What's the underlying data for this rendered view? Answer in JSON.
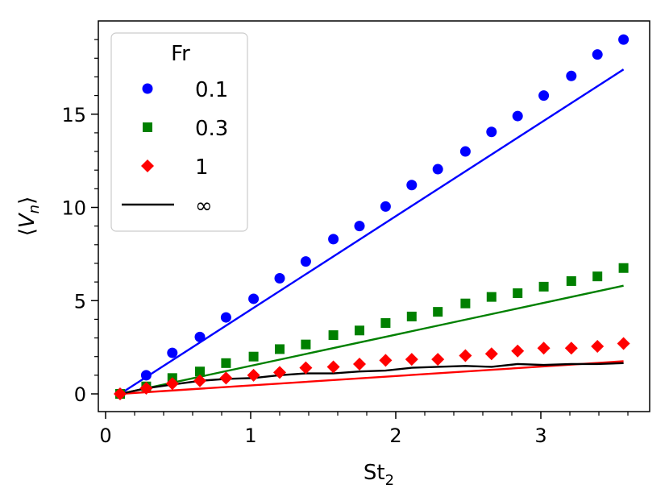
{
  "chart_data": {
    "type": "scatter",
    "title": "",
    "xlabel_main": "St",
    "xlabel_sub": "2",
    "ylabel_left": "⟨",
    "ylabel_var": "V",
    "ylabel_sub": "n",
    "ylabel_right": "⟩",
    "xlim": [
      -0.05,
      3.75
    ],
    "ylim": [
      -0.95,
      20.0
    ],
    "x_ticks": [
      0,
      1,
      2,
      3
    ],
    "x_tick_labels": [
      "0",
      "1",
      "2",
      "3"
    ],
    "x_minor_ticks": [
      0.2,
      0.4,
      0.6,
      0.8,
      1.2,
      1.4,
      1.6,
      1.8,
      2.2,
      2.4,
      2.6,
      2.8,
      3.2,
      3.4,
      3.6
    ],
    "y_ticks": [
      0,
      5,
      10,
      15
    ],
    "y_tick_labels": [
      "0",
      "5",
      "10",
      "15"
    ],
    "y_minor_ticks": [
      1,
      2,
      3,
      4,
      6,
      7,
      8,
      9,
      11,
      12,
      13,
      14,
      16,
      17,
      18,
      19
    ],
    "x": [
      0.1,
      0.28,
      0.46,
      0.65,
      0.83,
      1.02,
      1.2,
      1.38,
      1.57,
      1.75,
      1.93,
      2.11,
      2.29,
      2.48,
      2.66,
      2.84,
      3.02,
      3.21,
      3.39,
      3.57
    ],
    "legend": {
      "title": "Fr",
      "location": "upper-left"
    },
    "series": [
      {
        "name": "0.1",
        "marker": "circle",
        "color": "#0000ff",
        "values": [
          0.0,
          1.0,
          2.2,
          3.05,
          4.1,
          5.1,
          6.2,
          7.1,
          8.3,
          9.0,
          10.05,
          11.2,
          12.05,
          13.0,
          14.05,
          14.9,
          16.0,
          17.05,
          18.2,
          19.0
        ],
        "fit_line": {
          "x": [
            0.1,
            3.57
          ],
          "y": [
            0.0,
            17.4
          ]
        }
      },
      {
        "name": "0.3",
        "marker": "square",
        "color": "#008000",
        "values": [
          0.0,
          0.4,
          0.85,
          1.2,
          1.65,
          2.0,
          2.4,
          2.65,
          3.15,
          3.4,
          3.8,
          4.15,
          4.4,
          4.85,
          5.2,
          5.4,
          5.75,
          6.05,
          6.3,
          6.75
        ],
        "fit_line": {
          "x": [
            0.1,
            3.57
          ],
          "y": [
            0.0,
            5.8
          ]
        }
      },
      {
        "name": "1",
        "marker": "diamond",
        "color": "#ff0000",
        "values": [
          0.0,
          0.3,
          0.55,
          0.7,
          0.85,
          1.0,
          1.15,
          1.4,
          1.45,
          1.6,
          1.8,
          1.85,
          1.85,
          2.05,
          2.15,
          2.3,
          2.45,
          2.45,
          2.55,
          2.7
        ],
        "fit_line": {
          "x": [
            0.1,
            3.57
          ],
          "y": [
            0.0,
            1.75
          ]
        }
      },
      {
        "name": "∞",
        "marker": "line",
        "color": "#000000",
        "line": {
          "x": [
            0.1,
            0.28,
            0.46,
            0.65,
            0.83,
            1.02,
            1.2,
            1.38,
            1.57,
            1.75,
            1.93,
            2.11,
            2.29,
            2.48,
            2.66,
            2.84,
            3.02,
            3.21,
            3.39,
            3.57
          ],
          "y": [
            0.0,
            0.3,
            0.5,
            0.7,
            0.8,
            0.85,
            1.0,
            1.1,
            1.1,
            1.2,
            1.25,
            1.4,
            1.45,
            1.5,
            1.45,
            1.6,
            1.55,
            1.6,
            1.6,
            1.65
          ]
        }
      }
    ]
  }
}
